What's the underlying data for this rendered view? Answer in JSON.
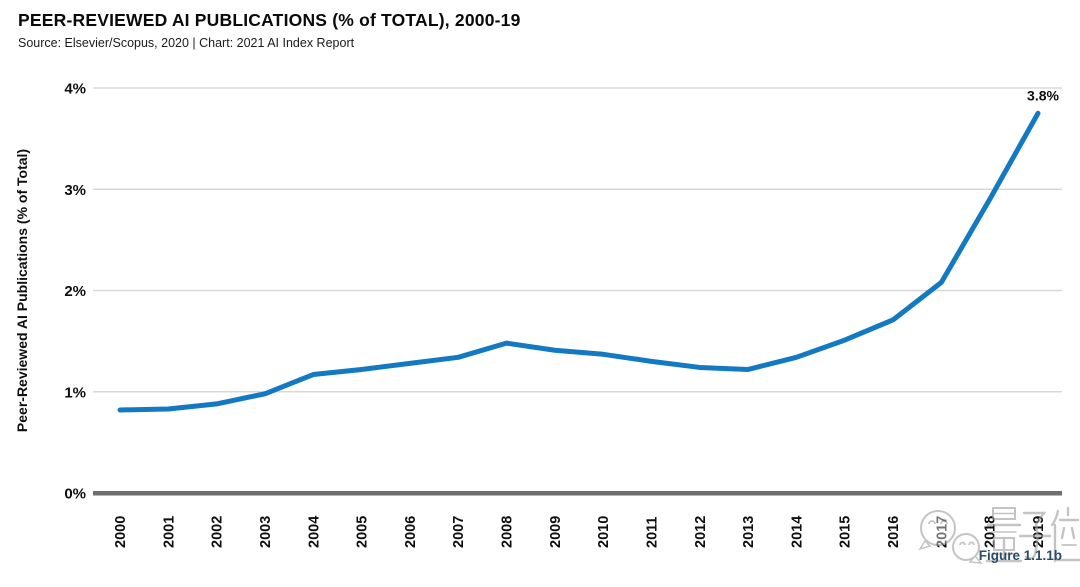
{
  "header": {
    "title": "PEER-REVIEWED AI PUBLICATIONS (% of TOTAL), 2000-19",
    "subtitle": "Source: Elsevier/Scopus, 2020 | Chart: 2021 AI Index Report"
  },
  "figure_label": "Figure 1.1.1b",
  "watermark": {
    "text": "量子位",
    "icon": "wechat-icon"
  },
  "colors": {
    "line": "#1379c2",
    "grid": "#d8d8d8",
    "axis": "#6e6e6e",
    "text": "#0f0f0f",
    "figure_label": "#2a4d68",
    "watermark": "#a8a8a8"
  },
  "chart_data": {
    "type": "line",
    "title": "PEER-REVIEWED AI PUBLICATIONS (% of TOTAL), 2000-19",
    "xlabel": "",
    "ylabel": "Peer-Reviewed AI Publications (% of Total)",
    "categories": [
      "2000",
      "2001",
      "2002",
      "2003",
      "2004",
      "2005",
      "2006",
      "2007",
      "2008",
      "2009",
      "2010",
      "2011",
      "2012",
      "2013",
      "2014",
      "2015",
      "2016",
      "2017",
      "2018",
      "2019"
    ],
    "series": [
      {
        "name": "Peer-Reviewed AI Publications (% of Total)",
        "values": [
          0.82,
          0.83,
          0.88,
          0.98,
          1.17,
          1.22,
          1.28,
          1.34,
          1.48,
          1.41,
          1.37,
          1.3,
          1.24,
          1.22,
          1.34,
          1.51,
          1.71,
          2.08,
          2.9,
          3.75
        ]
      }
    ],
    "ylim": [
      0,
      4
    ],
    "ytick_labels": [
      "0%",
      "1%",
      "2%",
      "3%",
      "4%"
    ],
    "ytick_values": [
      0,
      1,
      2,
      3,
      4
    ],
    "grid": true,
    "legend": false,
    "annotation": {
      "x": "2019",
      "label": "3.8%"
    }
  }
}
